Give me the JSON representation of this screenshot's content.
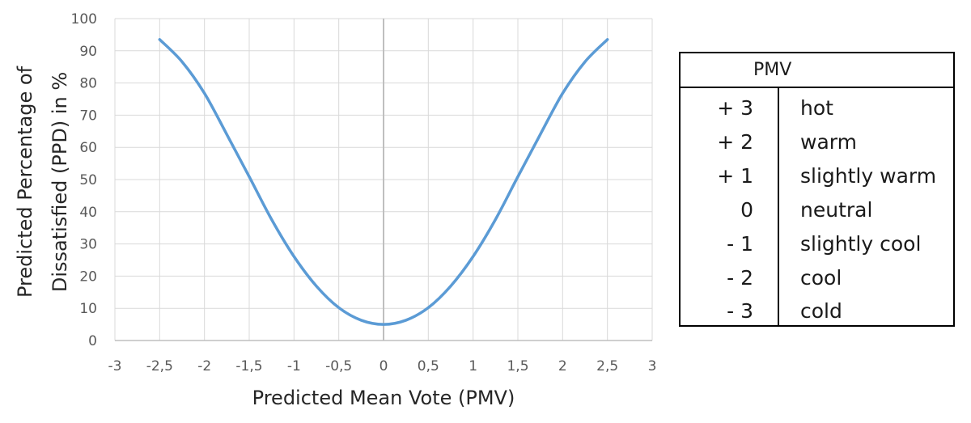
{
  "chart_data": {
    "type": "line",
    "xlabel": "Predicted Mean Vote (PMV)",
    "ylabel_lines": [
      "Predicted Percentage of",
      "Dissatisfied (PPD) in %"
    ],
    "xlim": [
      -3,
      3
    ],
    "ylim": [
      0,
      100
    ],
    "x_ticks": [
      -3,
      -2.5,
      -2,
      -1.5,
      -1,
      -0.5,
      0,
      0.5,
      1,
      1.5,
      2,
      2.5,
      3
    ],
    "x_tick_labels": [
      "-3",
      "-2,5",
      "-2",
      "-1,5",
      "-1",
      "-0,5",
      "0",
      "0,5",
      "1",
      "1,5",
      "2",
      "2,5",
      "3"
    ],
    "y_ticks": [
      0,
      10,
      20,
      30,
      40,
      50,
      60,
      70,
      80,
      90,
      100
    ],
    "y_tick_labels": [
      "0",
      "10",
      "20",
      "30",
      "40",
      "50",
      "60",
      "70",
      "80",
      "90",
      "100"
    ],
    "grid": true,
    "series": [
      {
        "color": "#5b9bd5",
        "x": [
          -2.5,
          -2.25,
          -2.0,
          -1.75,
          -1.5,
          -1.25,
          -1.0,
          -0.75,
          -0.5,
          -0.25,
          0,
          0.25,
          0.5,
          0.75,
          1.0,
          1.25,
          1.5,
          1.75,
          2.0,
          2.25,
          2.5
        ],
        "y": [
          93.5,
          86.6,
          76.8,
          64.0,
          50.9,
          37.6,
          26.1,
          16.9,
          10.2,
          6.3,
          5.0,
          6.3,
          10.2,
          16.9,
          26.1,
          37.6,
          50.9,
          64.0,
          76.8,
          86.6,
          93.5
        ]
      }
    ]
  },
  "pmv_table": {
    "header": "PMV",
    "rows": [
      {
        "value": "+ 3",
        "label": "hot"
      },
      {
        "value": "+ 2",
        "label": "warm"
      },
      {
        "value": "+ 1",
        "label": "slightly warm"
      },
      {
        "value": "0",
        "label": "neutral"
      },
      {
        "value": "- 1",
        "label": "slightly cool"
      },
      {
        "value": "- 2",
        "label": "cool"
      },
      {
        "value": "- 3",
        "label": "cold"
      }
    ]
  }
}
